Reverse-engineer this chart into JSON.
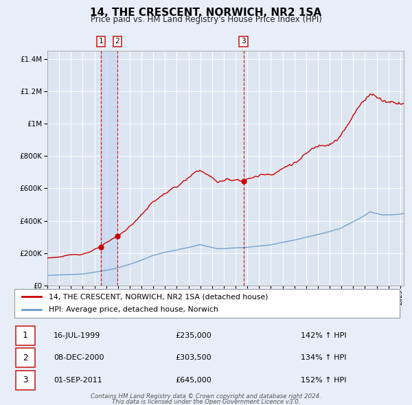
{
  "title": "14, THE CRESCENT, NORWICH, NR2 1SA",
  "subtitle": "Price paid vs. HM Land Registry's House Price Index (HPI)",
  "legend_house": "14, THE CRESCENT, NORWICH, NR2 1SA (detached house)",
  "legend_hpi": "HPI: Average price, detached house, Norwich",
  "footer1": "Contains HM Land Registry data © Crown copyright and database right 2024.",
  "footer2": "This data is licensed under the Open Government Licence v3.0.",
  "sales": [
    {
      "num": 1,
      "date": "16-JUL-1999",
      "price": "£235,000",
      "ratio": "142% ↑ HPI",
      "x_year": 1999.54,
      "y_val": 235000
    },
    {
      "num": 2,
      "date": "08-DEC-2000",
      "price": "£303,500",
      "ratio": "134% ↑ HPI",
      "x_year": 2000.94,
      "y_val": 303500
    },
    {
      "num": 3,
      "date": "01-SEP-2011",
      "price": "£645,000",
      "ratio": "152% ↑ HPI",
      "x_year": 2011.67,
      "y_val": 645000
    }
  ],
  "house_color": "#cc0000",
  "hpi_color": "#6699cc",
  "bg_color": "#e8eef8",
  "plot_bg": "#dde6f0",
  "grid_color": "#ffffff",
  "shade_color": "#c8d8f0",
  "vline_color": "#cc0000",
  "ylim": [
    0,
    1450000
  ],
  "xlim_start": 1995.0,
  "xlim_end": 2025.3
}
